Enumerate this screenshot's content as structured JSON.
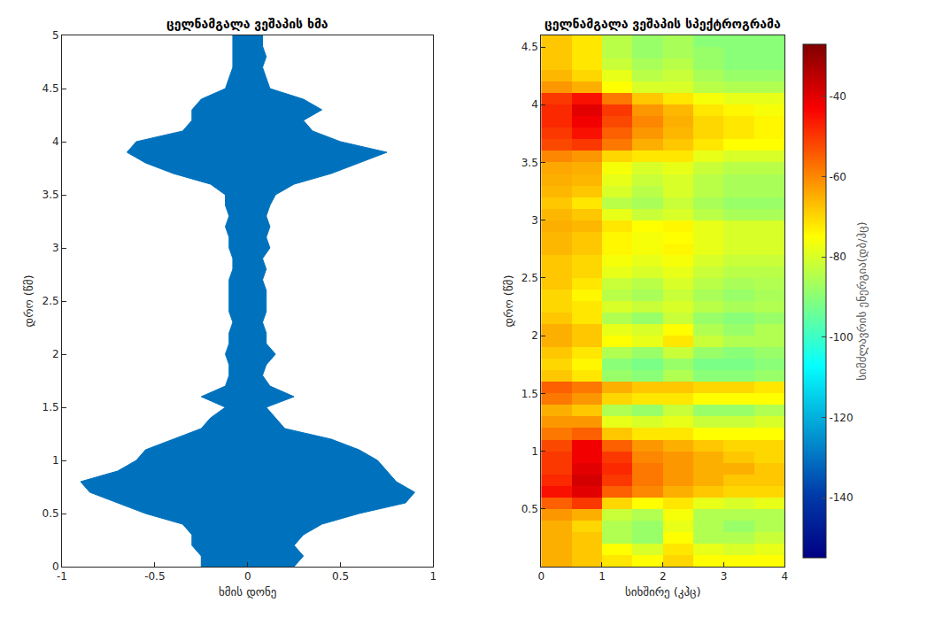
{
  "chart_data": [
    {
      "type": "area",
      "title": "ცელნამგალა ვეშაპის ხმა",
      "x_label": "ხმის დონე",
      "y_label": "დრო (წმ)",
      "color": "#0072bd",
      "y": [
        0,
        0.1,
        0.2,
        0.3,
        0.4,
        0.5,
        0.6,
        0.7,
        0.8,
        0.9,
        1.0,
        1.1,
        1.2,
        1.3,
        1.4,
        1.5,
        1.6,
        1.7,
        1.8,
        1.9,
        2.0,
        2.1,
        2.2,
        2.3,
        2.4,
        2.5,
        2.6,
        2.7,
        2.8,
        2.9,
        3.0,
        3.1,
        3.2,
        3.3,
        3.4,
        3.5,
        3.6,
        3.7,
        3.8,
        3.9,
        4.0,
        4.1,
        4.2,
        4.3,
        4.4,
        4.5,
        4.6,
        4.7,
        4.8,
        4.9,
        5.0
      ],
      "upper": [
        0.25,
        0.3,
        0.25,
        0.3,
        0.4,
        0.6,
        0.85,
        0.9,
        0.8,
        0.75,
        0.7,
        0.6,
        0.45,
        0.2,
        0.15,
        0.1,
        0.25,
        0.12,
        0.08,
        0.1,
        0.15,
        0.1,
        0.1,
        0.08,
        0.1,
        0.1,
        0.1,
        0.08,
        0.1,
        0.08,
        0.12,
        0.1,
        0.12,
        0.1,
        0.12,
        0.15,
        0.25,
        0.45,
        0.6,
        0.75,
        0.5,
        0.35,
        0.3,
        0.4,
        0.3,
        0.12,
        0.1,
        0.08,
        0.1,
        0.08,
        0.08
      ],
      "lower": [
        -0.25,
        -0.25,
        -0.3,
        -0.3,
        -0.35,
        -0.55,
        -0.7,
        -0.85,
        -0.9,
        -0.7,
        -0.6,
        -0.55,
        -0.4,
        -0.25,
        -0.2,
        -0.12,
        -0.25,
        -0.12,
        -0.1,
        -0.1,
        -0.12,
        -0.1,
        -0.1,
        -0.08,
        -0.1,
        -0.1,
        -0.1,
        -0.1,
        -0.08,
        -0.08,
        -0.1,
        -0.1,
        -0.12,
        -0.1,
        -0.12,
        -0.12,
        -0.2,
        -0.4,
        -0.55,
        -0.65,
        -0.6,
        -0.35,
        -0.3,
        -0.3,
        -0.25,
        -0.12,
        -0.1,
        -0.08,
        -0.08,
        -0.08,
        -0.08
      ],
      "xlim": [
        -1,
        1
      ],
      "xticks": [
        -1,
        -0.5,
        0,
        0.5,
        1
      ],
      "ylim": [
        0,
        5
      ],
      "yticks": [
        0,
        0.5,
        1,
        1.5,
        2,
        2.5,
        3,
        3.5,
        4,
        4.5,
        5
      ],
      "grid": false
    },
    {
      "type": "heatmap",
      "title": "ცელნამგალა ვეშაპის სპექტროგრამა",
      "x_label": "სიხშირე (კჰც)",
      "y_label": "დრო (წმ)",
      "color": "Jet",
      "x": [
        0.25,
        0.75,
        1.25,
        1.75,
        2.25,
        2.75,
        3.25,
        3.75
      ],
      "y": [
        0.05,
        0.15,
        0.25,
        0.35,
        0.45,
        0.55,
        0.65,
        0.75,
        0.85,
        0.95,
        1.05,
        1.15,
        1.25,
        1.35,
        1.45,
        1.55,
        1.65,
        1.75,
        1.85,
        1.95,
        2.05,
        2.15,
        2.25,
        2.35,
        2.45,
        2.55,
        2.65,
        2.75,
        2.85,
        2.95,
        3.05,
        3.15,
        3.25,
        3.35,
        3.45,
        3.55,
        3.65,
        3.75,
        3.85,
        3.95,
        4.05,
        4.15,
        4.25,
        4.35,
        4.45,
        4.55
      ],
      "cells": [
        [
          -65,
          -68,
          -72,
          -75,
          -70,
          -75,
          -75,
          -75
        ],
        [
          -65,
          -68,
          -75,
          -80,
          -72,
          -78,
          -80,
          -78
        ],
        [
          -65,
          -68,
          -85,
          -88,
          -75,
          -85,
          -85,
          -82
        ],
        [
          -65,
          -70,
          -85,
          -88,
          -78,
          -85,
          -88,
          -85
        ],
        [
          -62,
          -65,
          -82,
          -85,
          -76,
          -85,
          -85,
          -85
        ],
        [
          -55,
          -50,
          -70,
          -75,
          -72,
          -78,
          -80,
          -78
        ],
        [
          -45,
          -40,
          -55,
          -60,
          -65,
          -68,
          -70,
          -70
        ],
        [
          -48,
          -38,
          -50,
          -58,
          -62,
          -65,
          -68,
          -68
        ],
        [
          -50,
          -40,
          -48,
          -58,
          -62,
          -65,
          -65,
          -68
        ],
        [
          -50,
          -42,
          -50,
          -60,
          -62,
          -65,
          -68,
          -70
        ],
        [
          -52,
          -42,
          -55,
          -62,
          -65,
          -68,
          -70,
          -70
        ],
        [
          -58,
          -55,
          -68,
          -72,
          -72,
          -75,
          -75,
          -75
        ],
        [
          -62,
          -62,
          -78,
          -80,
          -78,
          -82,
          -82,
          -80
        ],
        [
          -65,
          -68,
          -85,
          -88,
          -82,
          -88,
          -88,
          -85
        ],
        [
          -58,
          -62,
          -70,
          -72,
          -72,
          -75,
          -75,
          -75
        ],
        [
          -55,
          -58,
          -65,
          -68,
          -68,
          -70,
          -70,
          -72
        ],
        [
          -68,
          -72,
          -88,
          -90,
          -85,
          -90,
          -90,
          -88
        ],
        [
          -70,
          -74,
          -90,
          -92,
          -88,
          -92,
          -92,
          -90
        ],
        [
          -68,
          -72,
          -85,
          -88,
          -82,
          -88,
          -90,
          -88
        ],
        [
          -65,
          -68,
          -75,
          -78,
          -72,
          -82,
          -85,
          -85
        ],
        [
          -65,
          -68,
          -78,
          -80,
          -75,
          -85,
          -88,
          -85
        ],
        [
          -68,
          -72,
          -85,
          -88,
          -82,
          -88,
          -90,
          -88
        ],
        [
          -70,
          -72,
          -80,
          -82,
          -80,
          -84,
          -86,
          -85
        ],
        [
          -70,
          -74,
          -84,
          -86,
          -82,
          -86,
          -88,
          -86
        ],
        [
          -68,
          -72,
          -82,
          -84,
          -80,
          -84,
          -86,
          -85
        ],
        [
          -68,
          -70,
          -78,
          -80,
          -78,
          -82,
          -84,
          -84
        ],
        [
          -68,
          -70,
          -76,
          -78,
          -76,
          -80,
          -82,
          -82
        ],
        [
          -66,
          -68,
          -74,
          -76,
          -74,
          -78,
          -80,
          -80
        ],
        [
          -66,
          -68,
          -74,
          -76,
          -75,
          -78,
          -80,
          -80
        ],
        [
          -65,
          -66,
          -72,
          -75,
          -74,
          -78,
          -80,
          -80
        ],
        [
          -66,
          -68,
          -78,
          -82,
          -80,
          -84,
          -86,
          -86
        ],
        [
          -68,
          -72,
          -84,
          -86,
          -82,
          -86,
          -88,
          -88
        ],
        [
          -66,
          -68,
          -80,
          -84,
          -80,
          -84,
          -86,
          -86
        ],
        [
          -65,
          -66,
          -78,
          -82,
          -80,
          -84,
          -86,
          -86
        ],
        [
          -64,
          -65,
          -76,
          -80,
          -78,
          -82,
          -84,
          -84
        ],
        [
          -60,
          -62,
          -70,
          -72,
          -72,
          -78,
          -80,
          -80
        ],
        [
          -52,
          -50,
          -58,
          -65,
          -68,
          -72,
          -75,
          -75
        ],
        [
          -50,
          -45,
          -55,
          -62,
          -66,
          -70,
          -72,
          -74
        ],
        [
          -48,
          -42,
          -52,
          -60,
          -65,
          -70,
          -72,
          -74
        ],
        [
          -48,
          -40,
          -50,
          -62,
          -66,
          -72,
          -74,
          -76
        ],
        [
          -50,
          -45,
          -58,
          -68,
          -72,
          -76,
          -78,
          -78
        ],
        [
          -62,
          -65,
          -75,
          -80,
          -80,
          -84,
          -85,
          -85
        ],
        [
          -66,
          -70,
          -78,
          -84,
          -82,
          -86,
          -88,
          -88
        ],
        [
          -68,
          -72,
          -82,
          -86,
          -84,
          -88,
          -90,
          -90
        ],
        [
          -68,
          -72,
          -84,
          -88,
          -86,
          -88,
          -90,
          -90
        ],
        [
          -68,
          -72,
          -84,
          -88,
          -86,
          -90,
          -90,
          -90
        ]
      ],
      "colorbar": {
        "title": "სიმძლავრის ენერგია(დბ/ჰც)",
        "range": [
          -155,
          -27
        ],
        "ticks": [
          -40,
          -60,
          -80,
          -100,
          -120,
          -140
        ]
      },
      "xlim": [
        0,
        4
      ],
      "xticks": [
        0,
        1,
        2,
        3,
        4
      ],
      "ylim": [
        0,
        4.6
      ],
      "yticks": [
        0.5,
        1,
        1.5,
        2,
        2.5,
        3,
        3.5,
        4,
        4.5
      ],
      "grid": false
    }
  ]
}
